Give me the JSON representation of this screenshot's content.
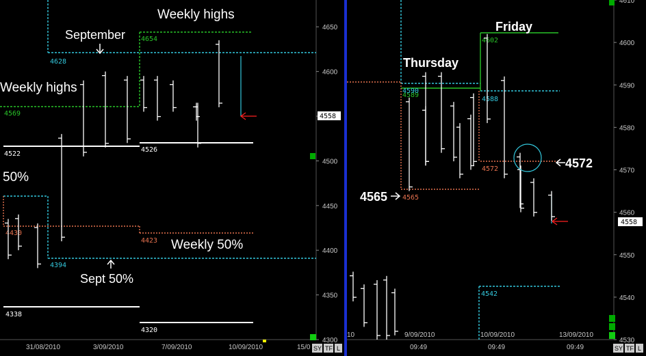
{
  "colors": {
    "background": "#000000",
    "bar": "#ffffff",
    "cyan": "#33c8dd",
    "green": "#29c429",
    "salmon": "#e8724f",
    "red": "#ff2020",
    "divider": "#1a2fd0",
    "axis_text": "#c8c8c8",
    "price_box": "#ffffff"
  },
  "chart_data": [
    {
      "type": "bar",
      "panel": "left",
      "bar_type": "ohlc",
      "ylim": [
        4300,
        4680
      ],
      "y_ticks": [
        "4650",
        "4600",
        "4550",
        "4500",
        "4450",
        "4400",
        "4350",
        "4300"
      ],
      "x_ticks": [
        "31/08/2010",
        "3/09/2010",
        "7/09/2010",
        "10/09/2010",
        "15/0"
      ],
      "current_price": "4558",
      "bars": [
        {
          "x": 0.5,
          "low": 4390,
          "high": 4435
        },
        {
          "x": 1.5,
          "low": 4400,
          "high": 4440
        },
        {
          "x": 2.5,
          "low": 4380,
          "high": 4430
        },
        {
          "x": 3.5,
          "low": 4410,
          "high": 4530
        },
        {
          "x": 4.5,
          "low": 4505,
          "high": 4590
        },
        {
          "x": 5.5,
          "low": 4515,
          "high": 4600
        },
        {
          "x": 6.5,
          "low": 4520,
          "high": 4595
        },
        {
          "x": 7.5,
          "low": 4555,
          "high": 4595
        },
        {
          "x": 8.5,
          "low": 4545,
          "high": 4595
        },
        {
          "x": 9.5,
          "low": 4555,
          "high": 4590
        },
        {
          "x": 10.5,
          "low": 4545,
          "high": 4565
        },
        {
          "x": 11.5,
          "low": 4515,
          "high": 4565
        },
        {
          "x": 12.5,
          "low": 4560,
          "high": 4635
        }
      ],
      "levels": [
        {
          "name": "Weekly highs",
          "value": 4654,
          "label": "4654",
          "color": "green"
        },
        {
          "name": "September high",
          "value": 4628,
          "label": "4628",
          "color": "cyan"
        },
        {
          "name": "Weekly highs",
          "value": 4569,
          "label": "4569",
          "color": "green"
        },
        {
          "name": "Weekly low",
          "value": 4522,
          "label": "4522",
          "color": "white"
        },
        {
          "name": "Weekly low",
          "value": 4526,
          "label": "4526",
          "color": "white"
        },
        {
          "name": "Weekly 50%",
          "value": 4430,
          "label": "4430",
          "color": "salmon"
        },
        {
          "name": "Weekly 50%",
          "value": 4423,
          "label": "4423",
          "color": "salmon"
        },
        {
          "name": "Sept 50%",
          "value": 4394,
          "label": "4394",
          "color": "cyan"
        },
        {
          "name": "Weekly low",
          "value": 4338,
          "label": "4338",
          "color": "white"
        },
        {
          "name": "Weekly low",
          "value": 4320,
          "label": "4320",
          "color": "white"
        }
      ],
      "annotations": [
        "Weekly  highs",
        "September",
        "Weekly  highs",
        "50%",
        "Weekly 50%",
        "Sept 50%"
      ],
      "buttons": [
        "SY",
        "TF",
        "L"
      ]
    },
    {
      "type": "bar",
      "panel": "right",
      "bar_type": "ohlc",
      "ylim": [
        4530,
        4610
      ],
      "y_ticks": [
        "4610",
        "4600",
        "4590",
        "4580",
        "4570",
        "4560",
        "4550",
        "4540",
        "4530"
      ],
      "x_ticks": [
        "10",
        "9/09/2010",
        "10/09/2010",
        "13/09/2010"
      ],
      "x_time_labels": [
        "09:49",
        "09:49",
        "09:49"
      ],
      "current_price": "4558",
      "bars": [
        {
          "x": 0.5,
          "low": 4539,
          "high": 4546
        },
        {
          "x": 1.5,
          "low": 4533,
          "high": 4543
        },
        {
          "x": 2.5,
          "low": 4530,
          "high": 4544
        },
        {
          "x": 3.5,
          "low": 4530,
          "high": 4545
        },
        {
          "x": 4.5,
          "low": 4531,
          "high": 4542
        },
        {
          "x": 5.5,
          "low": 4565,
          "high": 4587
        },
        {
          "x": 6.5,
          "low": 4571,
          "high": 4585
        },
        {
          "x": 7.5,
          "low": 4571,
          "high": 4593
        },
        {
          "x": 8.5,
          "low": 4574,
          "high": 4593
        },
        {
          "x": 9.5,
          "low": 4572,
          "high": 4586
        },
        {
          "x": 10.5,
          "low": 4568,
          "high": 4581
        },
        {
          "x": 11.5,
          "low": 4570,
          "high": 4583
        },
        {
          "x": 12.5,
          "low": 4571,
          "high": 4588
        },
        {
          "x": 13.5,
          "low": 4581,
          "high": 4602
        },
        {
          "x": 14.5,
          "low": 4568,
          "high": 4592
        },
        {
          "x": 15.5,
          "low": 4561,
          "high": 4574
        },
        {
          "x": 16.5,
          "low": 4560,
          "high": 4571
        },
        {
          "x": 17.5,
          "low": 4559,
          "high": 4568
        },
        {
          "x": 18.5,
          "low": 4558,
          "high": 4565
        }
      ],
      "levels": [
        {
          "name": "Friday",
          "value": 4602,
          "label": "4602",
          "color": "green"
        },
        {
          "name": "Thursday",
          "value": 4589,
          "label": "4589",
          "color": "green"
        },
        {
          "name": "",
          "value": 4590,
          "label": "4590",
          "color": "cyan"
        },
        {
          "name": "",
          "value": 4588,
          "label": "4588",
          "color": "cyan"
        },
        {
          "name": "",
          "value": 4572,
          "label": "4572",
          "color": "salmon"
        },
        {
          "name": "",
          "value": 4565,
          "label": "4565",
          "color": "salmon"
        },
        {
          "name": "",
          "value": 4542,
          "label": "4542",
          "color": "cyan"
        }
      ],
      "annotations": [
        "Friday",
        "Thursday",
        "4572",
        "4565"
      ],
      "buttons": [
        "SY",
        "TF",
        "L"
      ]
    }
  ]
}
